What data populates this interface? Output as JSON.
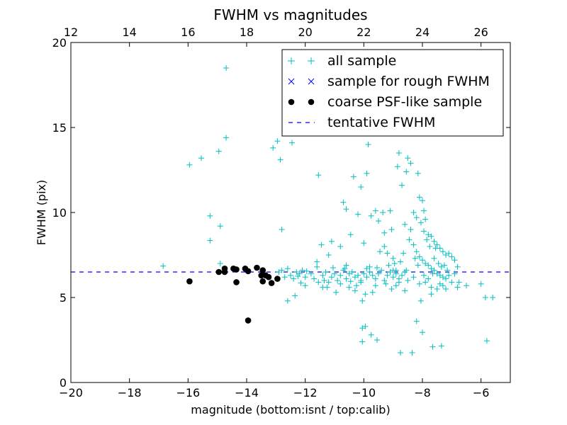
{
  "chart_data": {
    "type": "scatter",
    "title": "FWHM vs magnitudes",
    "xlabel": "magnitude (bottom:isnt / top:calib)",
    "ylabel": "FWHM (pix)",
    "xlim": [
      -20,
      -5
    ],
    "ylim": [
      0,
      20
    ],
    "x_ticks": [
      -20,
      -18,
      -16,
      -14,
      -12,
      -10,
      -8,
      -6
    ],
    "x_tick_labels": [
      "−20",
      "−18",
      "−16",
      "−14",
      "−12",
      "−10",
      "−8",
      "−6"
    ],
    "y_ticks": [
      0,
      5,
      10,
      15,
      20
    ],
    "y_tick_labels": [
      "0",
      "5",
      "10",
      "15",
      "20"
    ],
    "top_axis": {
      "offset": 32,
      "ticks": [
        12,
        14,
        16,
        18,
        20,
        22,
        24,
        26
      ],
      "tick_labels": [
        "12",
        "14",
        "16",
        "18",
        "20",
        "22",
        "24",
        "26"
      ]
    },
    "grid": false,
    "legend_position": "top-right",
    "tentative_fwhm": 6.5,
    "legend": [
      {
        "label": "all sample",
        "marker": "plus",
        "color": "#00bfbf"
      },
      {
        "label": "sample for rough FWHM",
        "marker": "x",
        "color": "#0000ff"
      },
      {
        "label": "coarse PSF-like sample",
        "marker": "dot",
        "color": "#000000"
      },
      {
        "label": "tentative FWHM",
        "marker": "dashed",
        "color": "#0000ff"
      }
    ],
    "series": [
      {
        "name": "all sample",
        "points": [
          [
            -16.85,
            6.85
          ],
          [
            -15.95,
            12.8
          ],
          [
            -15.55,
            13.2
          ],
          [
            -15.25,
            9.8
          ],
          [
            -15.25,
            8.35
          ],
          [
            -14.95,
            13.6
          ],
          [
            -14.9,
            9.2
          ],
          [
            -14.9,
            7.0
          ],
          [
            -14.7,
            18.5
          ],
          [
            -14.7,
            14.4
          ],
          [
            -13.1,
            13.8
          ],
          [
            -12.95,
            14.2
          ],
          [
            -12.85,
            13.1
          ],
          [
            -12.8,
            9.0
          ],
          [
            -12.45,
            14.1
          ],
          [
            -11.55,
            12.2
          ],
          [
            -12.9,
            6.5
          ],
          [
            -12.8,
            6.6
          ],
          [
            -12.7,
            6.2
          ],
          [
            -12.6,
            6.7
          ],
          [
            -12.5,
            6.3
          ],
          [
            -12.4,
            6.1
          ],
          [
            -12.3,
            6.5
          ],
          [
            -12.2,
            6.4
          ],
          [
            -12.6,
            4.8
          ],
          [
            -12.35,
            5.1
          ],
          [
            -12.1,
            6.6
          ],
          [
            -12.0,
            6.2
          ],
          [
            -11.8,
            6.4
          ],
          [
            -11.7,
            6.1
          ],
          [
            -11.6,
            6.8
          ],
          [
            -11.4,
            6.3
          ],
          [
            -11.3,
            6.5
          ],
          [
            -11.2,
            7.5
          ],
          [
            -11.25,
            5.6
          ],
          [
            -11.1,
            6.2
          ],
          [
            -11.0,
            6.4
          ],
          [
            -10.9,
            6.0
          ],
          [
            -10.8,
            6.3
          ],
          [
            -10.7,
            6.6
          ],
          [
            -10.6,
            6.1
          ],
          [
            -10.5,
            6.4
          ],
          [
            -10.4,
            6.5
          ],
          [
            -10.3,
            6.2
          ],
          [
            -10.2,
            6.3
          ],
          [
            -10.1,
            6.0
          ],
          [
            -10.0,
            6.4
          ],
          [
            -9.9,
            6.2
          ],
          [
            -9.8,
            6.5
          ],
          [
            -9.7,
            6.3
          ],
          [
            -9.6,
            6.1
          ],
          [
            -9.5,
            6.4
          ],
          [
            -9.4,
            6.6
          ],
          [
            -9.3,
            6.0
          ],
          [
            -9.2,
            6.3
          ],
          [
            -9.1,
            6.5
          ],
          [
            -9.0,
            6.2
          ],
          [
            -8.9,
            6.4
          ],
          [
            -8.8,
            6.1
          ],
          [
            -8.7,
            6.3
          ],
          [
            -8.6,
            6.5
          ],
          [
            -11.45,
            8.1
          ],
          [
            -11.1,
            8.3
          ],
          [
            -10.8,
            8.0
          ],
          [
            -10.45,
            8.7
          ],
          [
            -10.2,
            9.9
          ],
          [
            -10.0,
            8.2
          ],
          [
            -9.75,
            9.8
          ],
          [
            -9.5,
            9.5
          ],
          [
            -9.3,
            8.8
          ],
          [
            -9.1,
            10.1
          ],
          [
            -11.6,
            7.1
          ],
          [
            -11.4,
            5.6
          ],
          [
            -11.2,
            5.9
          ],
          [
            -10.95,
            5.3
          ],
          [
            -10.8,
            5.8
          ],
          [
            -10.6,
            6.9
          ],
          [
            -10.3,
            5.4
          ],
          [
            -10.1,
            5.9
          ],
          [
            -9.9,
            6.7
          ],
          [
            -9.6,
            5.7
          ],
          [
            -9.45,
            7.7
          ],
          [
            -9.0,
            7.3
          ],
          [
            -8.8,
            5.9
          ],
          [
            -10.7,
            10.6
          ],
          [
            -10.35,
            12.1
          ],
          [
            -10.1,
            11.5
          ],
          [
            -9.9,
            12.3
          ],
          [
            -10.6,
            10.2
          ],
          [
            -9.85,
            14.0
          ],
          [
            -9.6,
            10.1
          ],
          [
            -9.35,
            10.0
          ],
          [
            -9.05,
            9.0
          ],
          [
            -8.85,
            12.7
          ],
          [
            -8.8,
            13.5
          ],
          [
            -8.55,
            12.4
          ],
          [
            -8.5,
            13.2
          ],
          [
            -8.4,
            12.9
          ],
          [
            -8.15,
            12.3
          ],
          [
            -8.3,
            10.0
          ],
          [
            -8.1,
            10.9
          ],
          [
            -8.0,
            10.7
          ],
          [
            -7.95,
            10.1
          ],
          [
            -8.2,
            9.7
          ],
          [
            -8.05,
            9.4
          ],
          [
            -7.9,
            9.6
          ],
          [
            -7.8,
            8.7
          ],
          [
            -7.7,
            8.6
          ],
          [
            -7.6,
            8.3
          ],
          [
            -7.5,
            8.1
          ],
          [
            -7.4,
            7.9
          ],
          [
            -7.3,
            7.7
          ],
          [
            -7.2,
            7.5
          ],
          [
            -7.1,
            7.6
          ],
          [
            -7.0,
            7.4
          ],
          [
            -6.9,
            7.2
          ],
          [
            -6.8,
            6.8
          ],
          [
            -8.7,
            11.6
          ],
          [
            -8.6,
            9.3
          ],
          [
            -8.4,
            9.0
          ],
          [
            -8.3,
            8.1
          ],
          [
            -8.2,
            7.7
          ],
          [
            -8.1,
            7.4
          ],
          [
            -8.0,
            7.2
          ],
          [
            -7.9,
            7.0
          ],
          [
            -7.8,
            6.9
          ],
          [
            -7.7,
            6.7
          ],
          [
            -7.6,
            6.6
          ],
          [
            -7.5,
            6.4
          ],
          [
            -7.4,
            6.3
          ],
          [
            -7.3,
            6.2
          ],
          [
            -7.2,
            6.1
          ],
          [
            -7.1,
            6.3
          ],
          [
            -8.5,
            6.0
          ],
          [
            -8.3,
            6.2
          ],
          [
            -8.1,
            5.8
          ],
          [
            -7.9,
            5.9
          ],
          [
            -7.7,
            5.6
          ],
          [
            -7.5,
            5.5
          ],
          [
            -7.3,
            5.7
          ],
          [
            -7.0,
            5.9
          ],
          [
            -6.8,
            5.6
          ],
          [
            -8.05,
            4.8
          ],
          [
            -7.7,
            5.2
          ],
          [
            -7.6,
            7.3
          ],
          [
            -7.45,
            7.0
          ],
          [
            -7.35,
            6.8
          ],
          [
            -7.25,
            6.9
          ],
          [
            -7.15,
            6.6
          ],
          [
            -6.9,
            6.4
          ],
          [
            -6.75,
            5.9
          ],
          [
            -8.2,
            3.6
          ],
          [
            -8.0,
            2.95
          ],
          [
            -7.65,
            2.1
          ],
          [
            -7.35,
            2.15
          ],
          [
            -10.05,
            3.2
          ],
          [
            -9.95,
            3.3
          ],
          [
            -9.75,
            2.8
          ],
          [
            -9.55,
            2.5
          ],
          [
            -8.75,
            1.75
          ],
          [
            -8.35,
            1.75
          ],
          [
            -10.05,
            2.4
          ],
          [
            -10.05,
            4.8
          ],
          [
            -9.8,
            6.8
          ],
          [
            -9.3,
            8.0
          ],
          [
            -9.2,
            7.6
          ],
          [
            -9.15,
            6.9
          ],
          [
            -8.95,
            7.0
          ],
          [
            -8.9,
            6.6
          ],
          [
            -8.75,
            7.1
          ],
          [
            -8.65,
            7.6
          ],
          [
            -8.45,
            8.4
          ],
          [
            -8.25,
            7.3
          ],
          [
            -8.15,
            6.9
          ],
          [
            -7.95,
            8.9
          ],
          [
            -7.85,
            8.4
          ],
          [
            -7.75,
            8.0
          ],
          [
            -7.55,
            7.9
          ],
          [
            -6.5,
            5.7
          ],
          [
            -6.0,
            5.8
          ],
          [
            -5.85,
            5.0
          ],
          [
            -5.6,
            5.0
          ],
          [
            -5.8,
            2.45
          ],
          [
            -7.95,
            6.3
          ],
          [
            -7.8,
            6.1
          ],
          [
            -7.65,
            6.4
          ],
          [
            -7.4,
            5.8
          ],
          [
            -7.2,
            5.5
          ],
          [
            -12.15,
            5.85
          ],
          [
            -12.0,
            5.7
          ],
          [
            -11.55,
            5.9
          ],
          [
            -11.35,
            6.0
          ],
          [
            -10.5,
            5.6
          ],
          [
            -10.25,
            5.7
          ],
          [
            -9.95,
            5.2
          ],
          [
            -9.7,
            5.3
          ],
          [
            -9.25,
            5.8
          ],
          [
            -9.05,
            5.5
          ],
          [
            -8.9,
            5.7
          ],
          [
            -8.6,
            5.4
          ],
          [
            -12.25,
            6.25
          ],
          [
            -11.95,
            6.55
          ],
          [
            -11.05,
            6.75
          ],
          [
            -10.65,
            6.7
          ],
          [
            -10.45,
            5.95
          ],
          [
            -9.55,
            6.75
          ],
          [
            -9.0,
            6.6
          ],
          [
            -8.55,
            6.6
          ]
        ]
      },
      {
        "name": "coarse PSF-like sample",
        "points": [
          [
            -15.95,
            5.95
          ],
          [
            -14.95,
            6.5
          ],
          [
            -14.75,
            6.7
          ],
          [
            -14.75,
            6.5
          ],
          [
            -14.45,
            6.7
          ],
          [
            -14.35,
            6.65
          ],
          [
            -14.35,
            5.9
          ],
          [
            -14.05,
            6.7
          ],
          [
            -13.95,
            6.55
          ],
          [
            -13.95,
            3.65
          ],
          [
            -13.65,
            6.75
          ],
          [
            -13.5,
            6.3
          ],
          [
            -13.45,
            6.6
          ],
          [
            -13.45,
            5.95
          ],
          [
            -13.35,
            6.3
          ],
          [
            -13.25,
            6.2
          ],
          [
            -13.15,
            5.85
          ],
          [
            -12.95,
            6.1
          ]
        ]
      }
    ]
  }
}
